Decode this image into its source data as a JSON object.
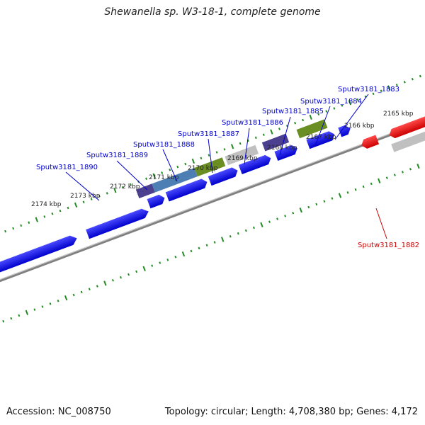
{
  "title": "Shewanella sp. W3-18-1, complete genome",
  "footer": {
    "accession": "Accession: NC_008750",
    "info": "Topology: circular; Length: 4,708,380 bp; Genes: 4,172"
  },
  "colors": {
    "forward_gene": "#0000ee",
    "reverse_gene": "#ee0000",
    "forward_label": "#0000cc",
    "reverse_label": "#cc0000",
    "scale_ticks": "#228b22",
    "backbone": "#808080"
  },
  "scale_labels": [
    "2165 kbp",
    "2166 kbp",
    "2167 kbp",
    "2168 kbp",
    "2169 kbp",
    "2170 kbp",
    "2171 kbp",
    "2172 kbp",
    "2173 kbp",
    "2174 kbp"
  ],
  "gene_labels": [
    {
      "text": "Sputw3181_1883",
      "strand": "forward"
    },
    {
      "text": "Sputw3181_1884",
      "strand": "forward"
    },
    {
      "text": "Sputw3181_1885",
      "strand": "forward"
    },
    {
      "text": "Sputw3181_1886",
      "strand": "forward"
    },
    {
      "text": "Sputw3181_1887",
      "strand": "forward"
    },
    {
      "text": "Sputw3181_1888",
      "strand": "forward"
    },
    {
      "text": "Sputw3181_1889",
      "strand": "forward"
    },
    {
      "text": "Sputw3181_1890",
      "strand": "forward"
    },
    {
      "text": "Sputw3181_1882",
      "strand": "reverse"
    }
  ]
}
